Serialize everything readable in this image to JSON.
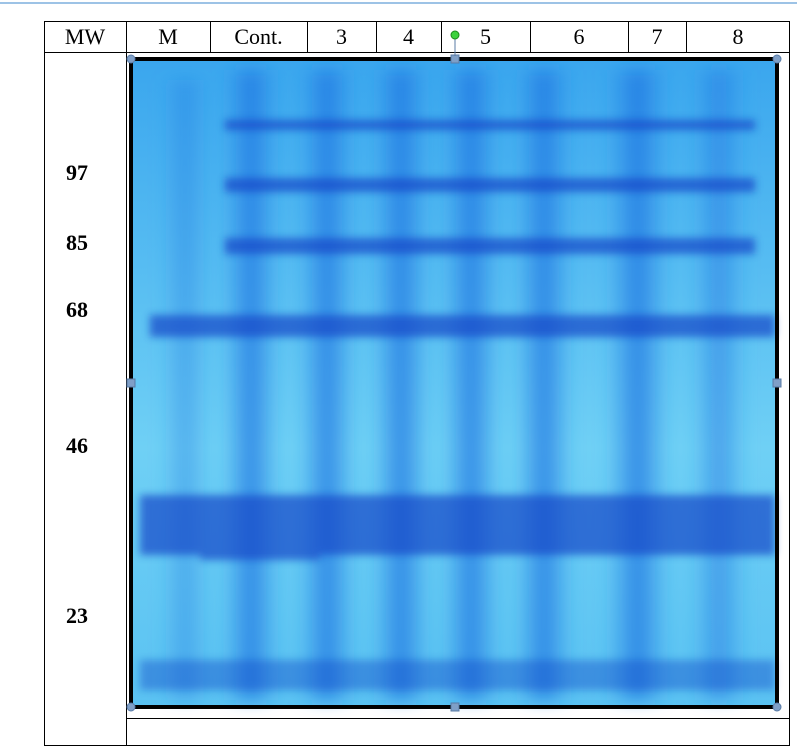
{
  "table": {
    "header": [
      "MW",
      "M",
      "Cont.",
      "3",
      "4",
      "5",
      "6",
      "7",
      "8"
    ],
    "mw_labels": [
      "97",
      "85",
      "68",
      "46",
      "23"
    ]
  }
}
